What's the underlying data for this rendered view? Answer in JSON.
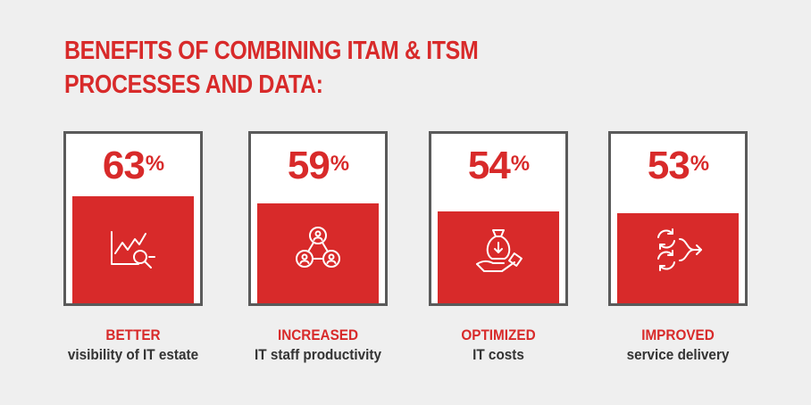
{
  "title": {
    "line1": "BENEFITS OF COMBINING ITAM & ITSM",
    "line2": "PROCESSES AND DATA:"
  },
  "colors": {
    "accent": "#d82a2a",
    "border": "#5a5a5a",
    "background": "#efefef"
  },
  "chart_data": {
    "type": "bar",
    "title": "BENEFITS OF COMBINING ITAM & ITSM PROCESSES AND DATA:",
    "categories": [
      "BETTER visibility of IT estate",
      "INCREASED IT staff productivity",
      "OPTIMIZED IT costs",
      "IMPROVED service delivery"
    ],
    "values": [
      63,
      59,
      54,
      53
    ],
    "unit": "%",
    "ylim": [
      0,
      100
    ],
    "grid": false
  },
  "cards": [
    {
      "value": 63,
      "number": "63",
      "unit": "%",
      "heading": "BETTER",
      "subtext": "visibility of IT estate",
      "icon": "chart-magnifier-icon"
    },
    {
      "value": 59,
      "number": "59",
      "unit": "%",
      "heading": "INCREASED",
      "subtext": "IT staff productivity",
      "icon": "team-network-icon"
    },
    {
      "value": 54,
      "number": "54",
      "unit": "%",
      "heading": "OPTIMIZED",
      "subtext": "IT costs",
      "icon": "money-bag-hand-icon"
    },
    {
      "value": 53,
      "number": "53",
      "unit": "%",
      "heading": "IMPROVED",
      "subtext": "service delivery",
      "icon": "cycle-arrows-icon"
    }
  ]
}
